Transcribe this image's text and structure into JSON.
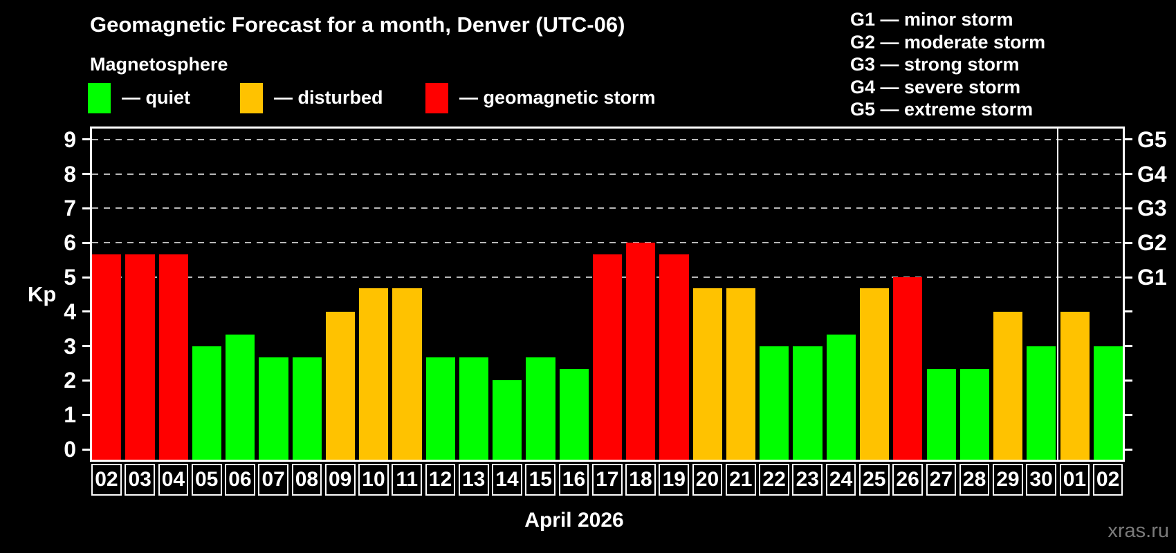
{
  "chart_data": {
    "type": "bar",
    "title": "Geomagnetic Forecast for a month, Denver (UTC-06)",
    "subtitle": "Magnetosphere",
    "xlabel": "April 2026",
    "ylabel": "Kp",
    "ylim": [
      -0.4,
      9.4
    ],
    "y_ticks": [
      "0",
      "1",
      "2",
      "3",
      "4",
      "5",
      "6",
      "7",
      "8",
      "9"
    ],
    "dashed_gridlines_at_kp": [
      5,
      6,
      7,
      8,
      9
    ],
    "right_axis_labels": [
      {
        "kp": 5,
        "label": "G1"
      },
      {
        "kp": 6,
        "label": "G2"
      },
      {
        "kp": 7,
        "label": "G3"
      },
      {
        "kp": 8,
        "label": "G4"
      },
      {
        "kp": 9,
        "label": "G5"
      }
    ],
    "categories": [
      "02",
      "03",
      "04",
      "05",
      "06",
      "07",
      "08",
      "09",
      "10",
      "11",
      "12",
      "13",
      "14",
      "15",
      "16",
      "17",
      "18",
      "19",
      "20",
      "21",
      "22",
      "23",
      "24",
      "25",
      "26",
      "27",
      "28",
      "29",
      "30",
      "01",
      "02"
    ],
    "values": [
      5.67,
      5.67,
      5.67,
      3.0,
      3.33,
      2.67,
      2.67,
      4.0,
      4.67,
      4.67,
      2.67,
      2.67,
      2.0,
      2.67,
      2.33,
      5.67,
      6.0,
      5.67,
      4.67,
      4.67,
      3.0,
      3.0,
      3.33,
      4.67,
      5.0,
      2.33,
      2.33,
      4.0,
      3.0,
      4.0,
      3.0
    ],
    "statuses": [
      "storm",
      "storm",
      "storm",
      "quiet",
      "quiet",
      "quiet",
      "quiet",
      "disturbed",
      "disturbed",
      "disturbed",
      "quiet",
      "quiet",
      "quiet",
      "quiet",
      "quiet",
      "storm",
      "storm",
      "storm",
      "disturbed",
      "disturbed",
      "quiet",
      "quiet",
      "quiet",
      "disturbed",
      "storm",
      "quiet",
      "quiet",
      "disturbed",
      "quiet",
      "disturbed",
      "quiet"
    ],
    "month_separator_after_index": 28,
    "colors": {
      "quiet": "#00ff00",
      "disturbed": "#ffc200",
      "storm": "#ff0000",
      "grid": "#b8b8b8",
      "axis": "#ffffff",
      "watermark": "#7a7a7a"
    },
    "legend": [
      {
        "status": "quiet",
        "label": "— quiet"
      },
      {
        "status": "disturbed",
        "label": "— disturbed"
      },
      {
        "status": "storm",
        "label": "— geomagnetic storm"
      }
    ],
    "g_legend": [
      "G1 — minor storm",
      "G2 — moderate storm",
      "G3 — strong storm",
      "G4 — severe storm",
      "G5 — extreme storm"
    ],
    "watermark": "xras.ru"
  }
}
